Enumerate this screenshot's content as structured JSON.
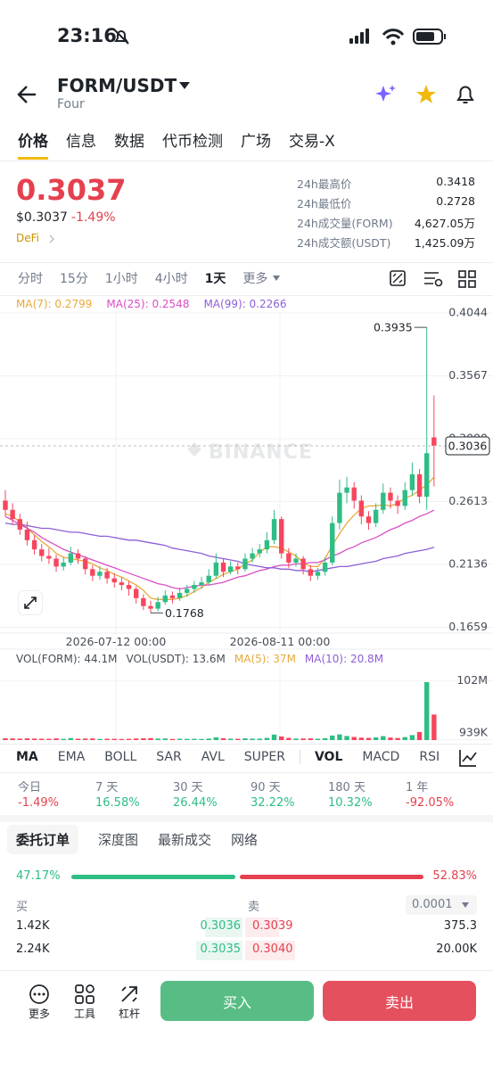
{
  "status_bar": {
    "time": "23:16"
  },
  "header": {
    "pair": "FORM/USDT",
    "subtitle": "Four"
  },
  "tabs": [
    "价格",
    "信息",
    "数据",
    "代币检测",
    "广场",
    "交易-X"
  ],
  "price": {
    "last": "0.3037",
    "usd": "$0.3037",
    "change": "-1.49%",
    "tag": "DeFi"
  },
  "stats": [
    {
      "label": "24h最高价",
      "value": "0.3418"
    },
    {
      "label": "24h最低价",
      "value": "0.2728"
    },
    {
      "label": "24h成交量(FORM)",
      "value": "4,627.05万"
    },
    {
      "label": "24h成交额(USDT)",
      "value": "1,425.09万"
    }
  ],
  "intervals": [
    "分时",
    "15分",
    "1小时",
    "4小时",
    "1天",
    "更多"
  ],
  "chart_data": {
    "type": "candlestick",
    "watermark": "BINANCE",
    "ylim": [
      0.1615,
      0.4044
    ],
    "yticks": [
      0.4044,
      0.3567,
      {
        "value": 0.309,
        "label": "0.3090"
      },
      0.2613,
      0.2136,
      0.1659
    ],
    "x_labels": [
      "2026-07-12 00:00",
      "2026-08-11 00:00"
    ],
    "last_price": 0.3036,
    "high_label": 0.3935,
    "low_label": 0.1768,
    "up_color": "#2ebd85",
    "down_color": "#f6465d",
    "candles": [
      [
        0.262,
        0.27,
        0.25,
        0.255
      ],
      [
        0.255,
        0.26,
        0.244,
        0.248
      ],
      [
        0.248,
        0.252,
        0.236,
        0.24
      ],
      [
        0.24,
        0.246,
        0.228,
        0.232
      ],
      [
        0.232,
        0.236,
        0.221,
        0.225
      ],
      [
        0.225,
        0.229,
        0.216,
        0.22
      ],
      [
        0.22,
        0.226,
        0.214,
        0.218
      ],
      [
        0.218,
        0.221,
        0.208,
        0.212
      ],
      [
        0.212,
        0.219,
        0.209,
        0.215
      ],
      [
        0.215,
        0.227,
        0.213,
        0.222
      ],
      [
        0.222,
        0.225,
        0.214,
        0.218
      ],
      [
        0.218,
        0.22,
        0.206,
        0.21
      ],
      [
        0.21,
        0.213,
        0.201,
        0.205
      ],
      [
        0.205,
        0.212,
        0.202,
        0.208
      ],
      [
        0.208,
        0.211,
        0.199,
        0.203
      ],
      [
        0.203,
        0.207,
        0.196,
        0.2
      ],
      [
        0.2,
        0.204,
        0.194,
        0.198
      ],
      [
        0.198,
        0.201,
        0.19,
        0.195
      ],
      [
        0.195,
        0.197,
        0.184,
        0.188
      ],
      [
        0.188,
        0.191,
        0.179,
        0.182
      ],
      [
        0.182,
        0.186,
        0.1768,
        0.18
      ],
      [
        0.18,
        0.189,
        0.178,
        0.185
      ],
      [
        0.185,
        0.194,
        0.183,
        0.19
      ],
      [
        0.19,
        0.193,
        0.184,
        0.188
      ],
      [
        0.188,
        0.196,
        0.186,
        0.192
      ],
      [
        0.192,
        0.198,
        0.189,
        0.195
      ],
      [
        0.195,
        0.201,
        0.192,
        0.198
      ],
      [
        0.198,
        0.204,
        0.195,
        0.2
      ],
      [
        0.2,
        0.21,
        0.198,
        0.205
      ],
      [
        0.205,
        0.222,
        0.203,
        0.215
      ],
      [
        0.215,
        0.218,
        0.204,
        0.208
      ],
      [
        0.208,
        0.216,
        0.206,
        0.212
      ],
      [
        0.212,
        0.215,
        0.206,
        0.21
      ],
      [
        0.21,
        0.222,
        0.208,
        0.218
      ],
      [
        0.218,
        0.226,
        0.215,
        0.222
      ],
      [
        0.222,
        0.229,
        0.219,
        0.225
      ],
      [
        0.225,
        0.238,
        0.222,
        0.232
      ],
      [
        0.232,
        0.255,
        0.229,
        0.248
      ],
      [
        0.248,
        0.25,
        0.218,
        0.222
      ],
      [
        0.222,
        0.226,
        0.211,
        0.215
      ],
      [
        0.215,
        0.222,
        0.212,
        0.218
      ],
      [
        0.218,
        0.22,
        0.206,
        0.21
      ],
      [
        0.21,
        0.213,
        0.201,
        0.205
      ],
      [
        0.205,
        0.211,
        0.202,
        0.208
      ],
      [
        0.208,
        0.219,
        0.205,
        0.215
      ],
      [
        0.215,
        0.25,
        0.213,
        0.245
      ],
      [
        0.245,
        0.278,
        0.24,
        0.268
      ],
      [
        0.268,
        0.28,
        0.26,
        0.272
      ],
      [
        0.272,
        0.276,
        0.256,
        0.262
      ],
      [
        0.262,
        0.266,
        0.244,
        0.25
      ],
      [
        0.25,
        0.254,
        0.24,
        0.245
      ],
      [
        0.245,
        0.26,
        0.242,
        0.255
      ],
      [
        0.255,
        0.275,
        0.252,
        0.268
      ],
      [
        0.268,
        0.272,
        0.256,
        0.262
      ],
      [
        0.262,
        0.266,
        0.252,
        0.258
      ],
      [
        0.258,
        0.276,
        0.255,
        0.27
      ],
      [
        0.27,
        0.291,
        0.266,
        0.282
      ],
      [
        0.282,
        0.286,
        0.26,
        0.265
      ],
      [
        0.265,
        0.3935,
        0.255,
        0.298
      ],
      [
        0.31,
        0.3418,
        0.2728,
        0.3036
      ]
    ],
    "ma": [
      {
        "name": "MA(7): 0.2799",
        "color": "#e9a93b",
        "values": [
          0.252,
          0.25,
          0.246,
          0.241,
          0.236,
          0.231,
          0.227,
          0.222,
          0.219,
          0.218,
          0.217,
          0.216,
          0.214,
          0.211,
          0.209,
          0.206,
          0.204,
          0.201,
          0.198,
          0.194,
          0.188,
          0.187,
          0.187,
          0.187,
          0.188,
          0.19,
          0.193,
          0.196,
          0.2,
          0.203,
          0.206,
          0.208,
          0.21,
          0.214,
          0.217,
          0.223,
          0.227,
          0.227,
          0.226,
          0.223,
          0.22,
          0.215,
          0.212,
          0.212,
          0.218,
          0.228,
          0.237,
          0.245,
          0.251,
          0.256,
          0.258,
          0.258,
          0.259,
          0.258,
          0.26,
          0.264,
          0.266,
          0.27,
          0.274,
          0.2799
        ]
      },
      {
        "name": "MA(25): 0.2548",
        "color": "#d94fc3",
        "values": [
          0.25,
          0.247,
          0.244,
          0.241,
          0.238,
          0.234,
          0.231,
          0.228,
          0.225,
          0.223,
          0.221,
          0.219,
          0.217,
          0.215,
          0.213,
          0.211,
          0.209,
          0.207,
          0.205,
          0.203,
          0.201,
          0.199,
          0.198,
          0.196,
          0.195,
          0.196,
          0.197,
          0.198,
          0.198,
          0.199,
          0.2,
          0.202,
          0.204,
          0.205,
          0.207,
          0.209,
          0.21,
          0.212,
          0.213,
          0.213,
          0.214,
          0.214,
          0.215,
          0.215,
          0.217,
          0.22,
          0.222,
          0.225,
          0.227,
          0.23,
          0.232,
          0.234,
          0.237,
          0.24,
          0.242,
          0.245,
          0.247,
          0.25,
          0.252,
          0.2548
        ]
      },
      {
        "name": "MA(99): 0.2266",
        "color": "#8e5fd6",
        "values": [
          0.245,
          0.244,
          0.244,
          0.243,
          0.242,
          0.241,
          0.241,
          0.24,
          0.239,
          0.238,
          0.238,
          0.237,
          0.236,
          0.235,
          0.235,
          0.234,
          0.233,
          0.232,
          0.232,
          0.231,
          0.23,
          0.229,
          0.228,
          0.226,
          0.225,
          0.224,
          0.223,
          0.222,
          0.22,
          0.219,
          0.218,
          0.217,
          0.216,
          0.214,
          0.213,
          0.212,
          0.211,
          0.211,
          0.21,
          0.21,
          0.209,
          0.209,
          0.208,
          0.209,
          0.21,
          0.211,
          0.212,
          0.212,
          0.213,
          0.214,
          0.215,
          0.216,
          0.218,
          0.219,
          0.22,
          0.222,
          0.223,
          0.224,
          0.225,
          0.2266
        ]
      }
    ],
    "volume": {
      "legend": [
        {
          "name": "VOL(FORM): 44.1M",
          "color": "#474d57"
        },
        {
          "name": "VOL(USDT): 13.6M",
          "color": "#474d57"
        },
        {
          "name": "MA(5): 37M",
          "color": "#e9a93b"
        },
        {
          "name": "MA(10): 20.8M",
          "color": "#8e5fd6"
        }
      ],
      "ylim": [
        0,
        120000000
      ],
      "yticks": [
        {
          "value": 102000000,
          "label": "102M"
        },
        {
          "value": 939000,
          "label": "939K"
        }
      ],
      "values": [
        3200000,
        2800000,
        2500000,
        3000000,
        2600000,
        2400000,
        2200000,
        2900000,
        2100000,
        3500000,
        2300000,
        2600000,
        2800000,
        2000000,
        2400000,
        2200000,
        1900000,
        2100000,
        2700000,
        3100000,
        3400000,
        2600000,
        2800000,
        2000000,
        2300000,
        2100000,
        2200000,
        1900000,
        2600000,
        4800000,
        3100000,
        2400000,
        2200000,
        3000000,
        2600000,
        2500000,
        3800000,
        9500000,
        6200000,
        3800000,
        2600000,
        2800000,
        2900000,
        2300000,
        3200000,
        7800000,
        9800000,
        7000000,
        5400000,
        4200000,
        3800000,
        4600000,
        6800000,
        4400000,
        3600000,
        5200000,
        8600000,
        14000000,
        100000000,
        44100000
      ]
    }
  },
  "indicators": [
    "MA",
    "EMA",
    "BOLL",
    "SAR",
    "AVL",
    "SUPER",
    "VOL",
    "MACD",
    "RSI"
  ],
  "performance": [
    {
      "label": "今日",
      "value": "-1.49%"
    },
    {
      "label": "7 天",
      "value": "16.58%"
    },
    {
      "label": "30 天",
      "value": "26.44%"
    },
    {
      "label": "90 天",
      "value": "32.22%"
    },
    {
      "label": "180 天",
      "value": "10.32%"
    },
    {
      "label": "1 年",
      "value": "-92.05%"
    }
  ],
  "orderbook": {
    "tabs": [
      "委托订单",
      "深度图",
      "最新成交",
      "网络"
    ],
    "ratio": {
      "values": [
        47.17,
        52.83
      ],
      "value_labels": [
        "47.17%",
        "52.83%"
      ]
    },
    "bid_header": "买",
    "ask_header": "卖",
    "precision": "0.0001",
    "rows": [
      [
        "1.42K",
        "0.3036",
        "0.3039",
        "375.3"
      ],
      [
        "2.24K",
        "0.3035",
        "0.3040",
        "20.00K"
      ]
    ]
  },
  "bottom_bar": {
    "more": "更多",
    "tools": "工具",
    "margin": "杠杆",
    "buy": "买入",
    "sell": "卖出"
  }
}
